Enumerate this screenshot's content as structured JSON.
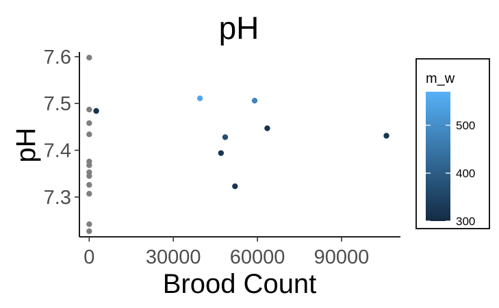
{
  "chart_data": {
    "type": "scatter",
    "title": "pH",
    "xlabel": "Brood Count",
    "ylabel": "pH",
    "xlim": [
      -3500,
      111000
    ],
    "ylim": [
      7.215,
      7.61
    ],
    "x_ticks": [
      0,
      30000,
      60000,
      90000
    ],
    "x_tick_labels": [
      "0",
      "30000",
      "60000",
      "90000"
    ],
    "y_ticks": [
      7.3,
      7.4,
      7.5,
      7.6
    ],
    "y_tick_labels": [
      "7.3",
      "7.4",
      "7.5",
      "7.6"
    ],
    "grid": false,
    "na_color": "#7f7f7f",
    "legend": {
      "title": "m_w",
      "position": "right",
      "type": "colorbar",
      "range": [
        300,
        570
      ],
      "ticks": [
        300,
        400,
        500
      ],
      "tick_labels": [
        "300",
        "400",
        "500"
      ],
      "color_low": "#132B43",
      "color_high": "#56B1F7"
    },
    "points": [
      {
        "x": 0,
        "y": 7.598,
        "m_w": null
      },
      {
        "x": 0,
        "y": 7.487,
        "m_w": null
      },
      {
        "x": 0,
        "y": 7.458,
        "m_w": null
      },
      {
        "x": 0,
        "y": 7.434,
        "m_w": null
      },
      {
        "x": 0,
        "y": 7.376,
        "m_w": null
      },
      {
        "x": 0,
        "y": 7.368,
        "m_w": null
      },
      {
        "x": 0,
        "y": 7.353,
        "m_w": null
      },
      {
        "x": 0,
        "y": 7.345,
        "m_w": null
      },
      {
        "x": 0,
        "y": 7.326,
        "m_w": null
      },
      {
        "x": 0,
        "y": 7.307,
        "m_w": null
      },
      {
        "x": 0,
        "y": 7.242,
        "m_w": null
      },
      {
        "x": 0,
        "y": 7.227,
        "m_w": null
      },
      {
        "x": 2500,
        "y": 7.484,
        "m_w": 315
      },
      {
        "x": 39500,
        "y": 7.511,
        "m_w": 550
      },
      {
        "x": 59000,
        "y": 7.506,
        "m_w": 480
      },
      {
        "x": 48500,
        "y": 7.428,
        "m_w": 370
      },
      {
        "x": 47000,
        "y": 7.394,
        "m_w": 325
      },
      {
        "x": 52000,
        "y": 7.323,
        "m_w": 320
      },
      {
        "x": 63500,
        "y": 7.447,
        "m_w": 320
      },
      {
        "x": 106000,
        "y": 7.431,
        "m_w": 320
      }
    ]
  }
}
